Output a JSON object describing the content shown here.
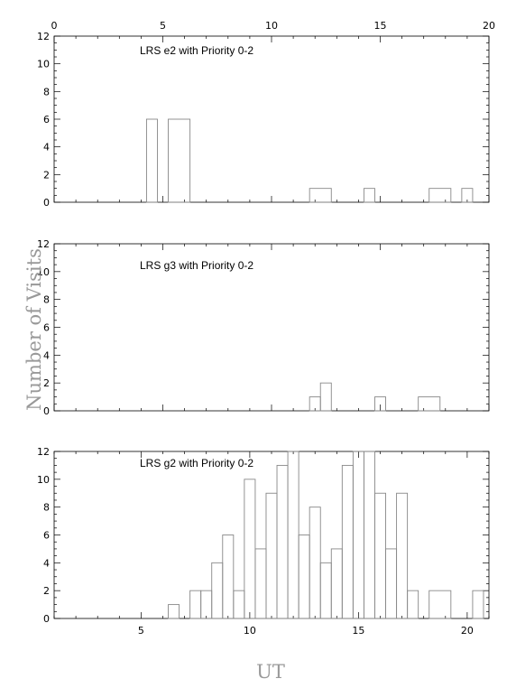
{
  "chart_data": [
    {
      "type": "histogram",
      "title": "LRS e2 with Priority 0-2",
      "x_unit": "UT",
      "xlim": [
        0,
        20
      ],
      "ylim": [
        0,
        12
      ],
      "x_tick_labels": [
        "0",
        "5",
        "10",
        "15",
        "20"
      ],
      "y_tick_labels": [
        "0",
        "2",
        "4",
        "6",
        "8",
        "10",
        "12"
      ],
      "bins": [
        {
          "x0": 4.25,
          "x1": 4.75,
          "count": 6
        },
        {
          "x0": 5.25,
          "x1": 6.25,
          "count": 6
        },
        {
          "x0": 11.75,
          "x1": 12.75,
          "count": 1
        },
        {
          "x0": 14.25,
          "x1": 14.75,
          "count": 1
        },
        {
          "x0": 17.25,
          "x1": 18.25,
          "count": 1
        },
        {
          "x0": 18.75,
          "x1": 19.25,
          "count": 1
        }
      ]
    },
    {
      "type": "histogram",
      "title": "LRS g3 with Priority 0-2",
      "x_unit": "UT",
      "xlim": [
        0,
        20
      ],
      "ylim": [
        0,
        12
      ],
      "y_tick_labels": [
        "0",
        "2",
        "4",
        "6",
        "8",
        "10",
        "12"
      ],
      "bins": [
        {
          "x0": 11.75,
          "x1": 12.25,
          "count": 1
        },
        {
          "x0": 12.25,
          "x1": 12.75,
          "count": 2
        },
        {
          "x0": 14.75,
          "x1": 15.25,
          "count": 1
        },
        {
          "x0": 16.75,
          "x1": 17.75,
          "count": 1
        }
      ]
    },
    {
      "type": "histogram",
      "title": "LRS g2 with Priority 0-2",
      "x_unit": "UT",
      "xlim": [
        1,
        21
      ],
      "ylim": [
        0,
        12
      ],
      "x_tick_labels": [
        "5",
        "10",
        "15",
        "20"
      ],
      "y_tick_labels": [
        "0",
        "2",
        "4",
        "6",
        "8",
        "10",
        "12"
      ],
      "bins": [
        {
          "x0": 6.25,
          "x1": 6.75,
          "count": 1
        },
        {
          "x0": 7.25,
          "x1": 7.75,
          "count": 2
        },
        {
          "x0": 7.75,
          "x1": 8.25,
          "count": 2
        },
        {
          "x0": 8.25,
          "x1": 8.75,
          "count": 4
        },
        {
          "x0": 8.75,
          "x1": 9.25,
          "count": 6
        },
        {
          "x0": 9.25,
          "x1": 9.75,
          "count": 2
        },
        {
          "x0": 9.75,
          "x1": 10.25,
          "count": 10
        },
        {
          "x0": 10.25,
          "x1": 10.75,
          "count": 5
        },
        {
          "x0": 10.75,
          "x1": 11.25,
          "count": 9
        },
        {
          "x0": 11.25,
          "x1": 11.75,
          "count": 11
        },
        {
          "x0": 11.75,
          "x1": 12.25,
          "count": 12
        },
        {
          "x0": 12.25,
          "x1": 12.75,
          "count": 6
        },
        {
          "x0": 12.75,
          "x1": 13.25,
          "count": 8
        },
        {
          "x0": 13.25,
          "x1": 13.75,
          "count": 4
        },
        {
          "x0": 13.75,
          "x1": 14.25,
          "count": 5
        },
        {
          "x0": 14.25,
          "x1": 14.75,
          "count": 11
        },
        {
          "x0": 14.75,
          "x1": 15.25,
          "count": 12
        },
        {
          "x0": 15.25,
          "x1": 15.75,
          "count": 12
        },
        {
          "x0": 15.75,
          "x1": 16.25,
          "count": 9
        },
        {
          "x0": 16.25,
          "x1": 16.75,
          "count": 5
        },
        {
          "x0": 16.75,
          "x1": 17.25,
          "count": 9
        },
        {
          "x0": 17.25,
          "x1": 17.75,
          "count": 2
        },
        {
          "x0": 18.25,
          "x1": 19.25,
          "count": 2
        },
        {
          "x0": 20.25,
          "x1": 20.75,
          "count": 2
        }
      ]
    }
  ],
  "xlabel": "UT",
  "ylabel": "Number of Visits",
  "colors": {
    "axes": "#000000",
    "bars": "#888888",
    "labels": "#999999"
  }
}
